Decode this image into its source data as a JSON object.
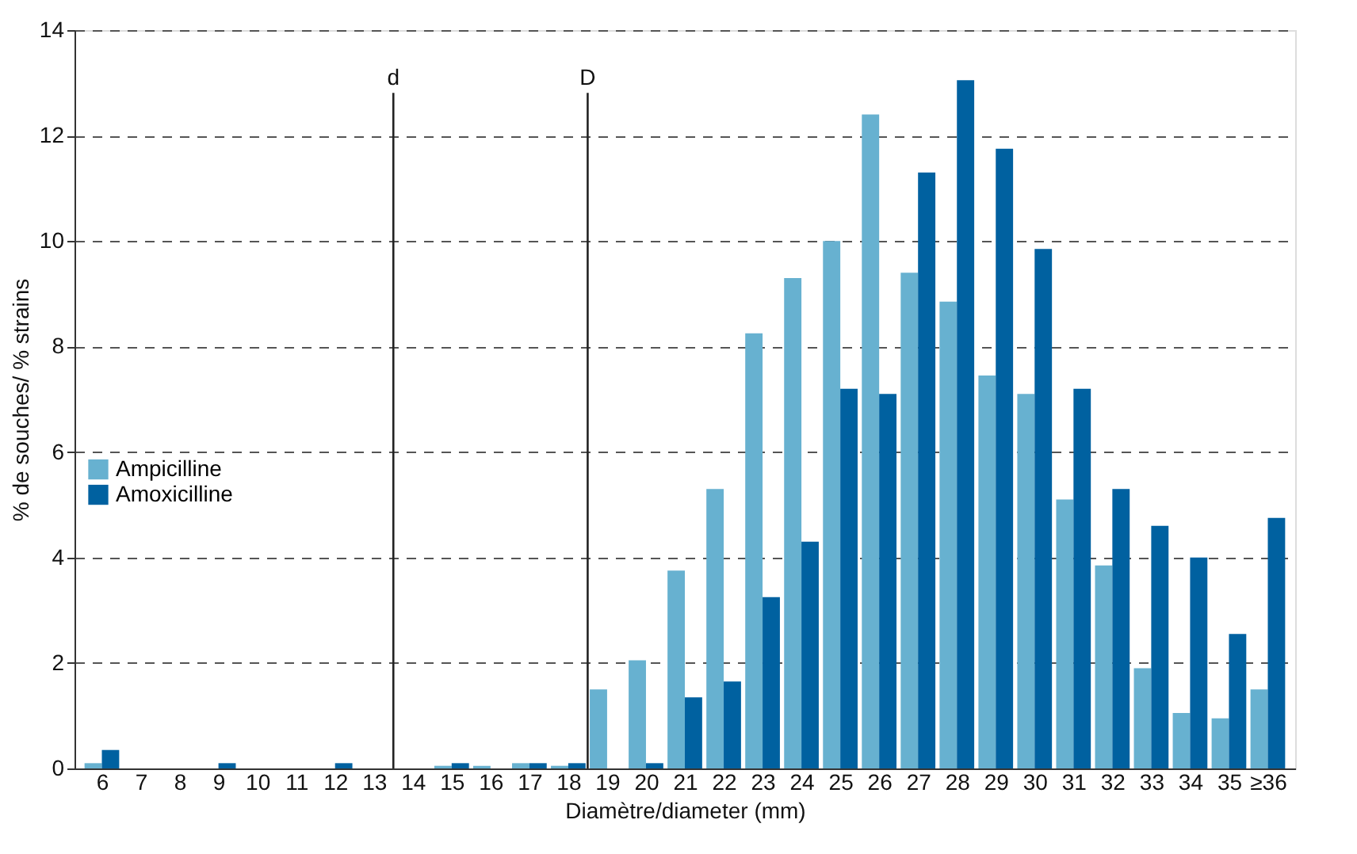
{
  "chart_data": {
    "type": "bar",
    "xlabel": "Diamètre/diameter (mm)",
    "ylabel": "% de souches/ % strains",
    "x": [
      6,
      7,
      8,
      9,
      10,
      11,
      12,
      13,
      14,
      15,
      16,
      17,
      18,
      19,
      20,
      21,
      22,
      23,
      24,
      25,
      26,
      27,
      28,
      29,
      30,
      31,
      32,
      33,
      34,
      35,
      36
    ],
    "xlim": [
      5.5,
      36.5
    ],
    "xticks": [
      6,
      7,
      8,
      9,
      10,
      11,
      12,
      13,
      14,
      15,
      16,
      17,
      18,
      19,
      20,
      21,
      22,
      23,
      24,
      25,
      26,
      27,
      28,
      29,
      30,
      31,
      32,
      33,
      34,
      35,
      {
        "value": 36,
        "label": "≥36"
      }
    ],
    "ylim": [
      0,
      14
    ],
    "yticks": [
      0,
      2,
      4,
      6,
      8,
      10,
      12,
      14
    ],
    "grid": "y",
    "legend": "left",
    "series": [
      {
        "name": "Ampicilline",
        "color": "#67b1d0",
        "values": [
          0.1,
          0,
          0,
          0,
          0,
          0,
          0,
          0,
          0,
          0.05,
          0.05,
          0.1,
          0.05,
          1.5,
          2.05,
          3.75,
          5.3,
          8.25,
          9.3,
          10.0,
          12.4,
          9.4,
          8.85,
          7.45,
          7.1,
          5.1,
          3.85,
          1.9,
          1.05,
          0.95,
          1.5
        ]
      },
      {
        "name": "Amoxicilline",
        "color": "#0061a0",
        "values": [
          0.35,
          0,
          0,
          0.1,
          0,
          0,
          0.1,
          0,
          0,
          0.1,
          0,
          0.1,
          0.1,
          0,
          0.1,
          1.35,
          1.65,
          3.25,
          4.3,
          7.2,
          7.1,
          11.3,
          13.05,
          11.75,
          9.85,
          7.2,
          5.3,
          4.6,
          4.0,
          2.55,
          4.75
        ]
      }
    ],
    "ref_lines": [
      {
        "axis": "x",
        "value": 13.5,
        "label": "d"
      },
      {
        "axis": "x",
        "value": 18.5,
        "label": "D"
      }
    ]
  }
}
